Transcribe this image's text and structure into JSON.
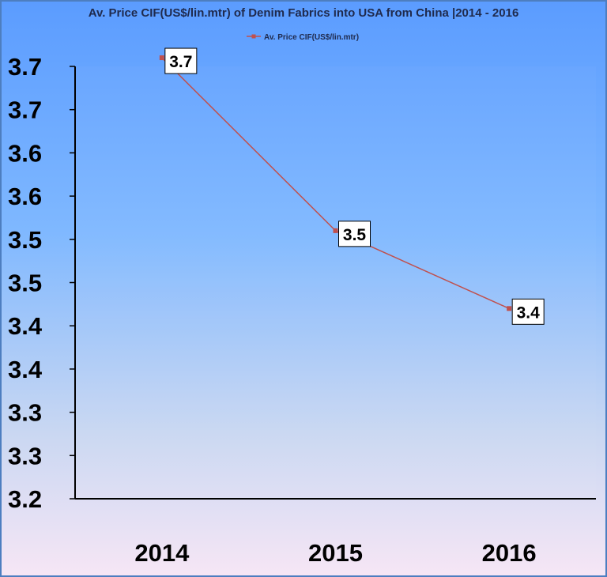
{
  "chart_data": {
    "type": "line",
    "title": "Av. Price CIF(US$/lin.mtr) of Denim Fabrics  into USA from China |2014 - 2016",
    "legend_position": "top-center",
    "categories": [
      "2014",
      "2015",
      "2016"
    ],
    "series": [
      {
        "name": "Av. Price CIF(US$/lin.mtr)",
        "values": [
          3.71,
          3.51,
          3.42
        ],
        "data_labels": [
          "3.7",
          "3.5",
          "3.4"
        ]
      }
    ],
    "y_ticks": [
      3.2,
      3.25,
      3.3,
      3.35,
      3.4,
      3.45,
      3.5,
      3.55,
      3.6,
      3.65,
      3.7
    ],
    "y_tick_labels": [
      "3.2",
      "3.3",
      "3.3",
      "3.4",
      "3.4",
      "3.5",
      "3.5",
      "3.6",
      "3.6",
      "3.7",
      "3.7"
    ],
    "ylim": [
      3.2,
      3.7
    ],
    "grid": false,
    "colors": {
      "line": "#c0504d",
      "axis": "#000000",
      "plot_area": "#62a0ff"
    }
  }
}
